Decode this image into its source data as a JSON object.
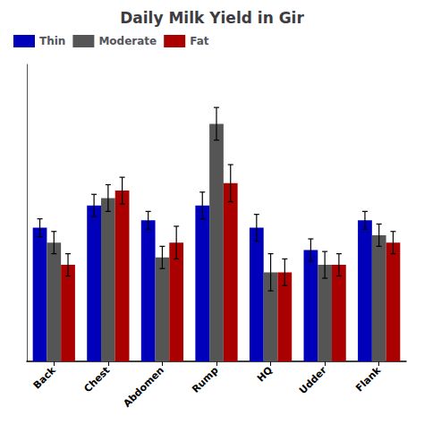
{
  "chart_data": {
    "type": "bar",
    "title": "Daily Milk Yield in Gir",
    "categories": [
      "Back",
      "Chest",
      "Abdomen",
      "Rump",
      "HQ",
      "Udder",
      "Flank"
    ],
    "series": [
      {
        "name": "Thin",
        "color": "#0000bb",
        "values": [
          7.8,
          8.1,
          7.9,
          8.1,
          7.8,
          7.5,
          7.9
        ],
        "errors": [
          0.12,
          0.15,
          0.12,
          0.18,
          0.18,
          0.15,
          0.12
        ]
      },
      {
        "name": "Moderate",
        "color": "#555555",
        "values": [
          7.6,
          8.2,
          7.4,
          9.2,
          7.2,
          7.3,
          7.7
        ],
        "errors": [
          0.15,
          0.18,
          0.15,
          0.22,
          0.25,
          0.18,
          0.15
        ]
      },
      {
        "name": "Fat",
        "color": "#aa0000",
        "values": [
          7.3,
          8.3,
          7.6,
          8.4,
          7.2,
          7.3,
          7.6
        ],
        "errors": [
          0.15,
          0.18,
          0.22,
          0.25,
          0.18,
          0.15,
          0.15
        ]
      }
    ],
    "ylim": [
      6.0,
      10.0
    ],
    "grid": false,
    "legend": "upper left",
    "tick_labels": "x"
  }
}
